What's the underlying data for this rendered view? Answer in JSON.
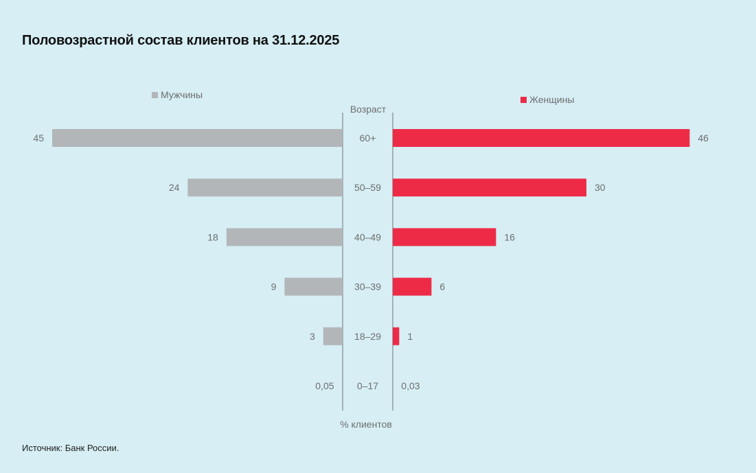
{
  "title": "Половозрастной состав клиентов на 31.12.2025",
  "source": "Источник: Банк России.",
  "chart_data": {
    "type": "bar",
    "orientation": "horizontal-butterfly",
    "title": "Половозрастной состав клиентов на 31.12.2025",
    "category_axis_label": "Возраст",
    "value_axis_label": "% клиентов",
    "categories": [
      "60+",
      "50–59",
      "40–49",
      "30–39",
      "18–29",
      "0–17"
    ],
    "series": [
      {
        "name": "Мужчины",
        "side": "left",
        "color": "#b3b6b9",
        "values": [
          45,
          24,
          18,
          9,
          3,
          0.05
        ],
        "labels": [
          "45",
          "24",
          "18",
          "9",
          "3",
          "0,05"
        ]
      },
      {
        "name": "Женщины",
        "side": "right",
        "color": "#ee2b47",
        "values": [
          46,
          30,
          16,
          6,
          1,
          0.03
        ],
        "labels": [
          "46",
          "30",
          "16",
          "6",
          "1",
          "0,03"
        ]
      }
    ],
    "xlim": [
      0,
      48
    ],
    "grid": false,
    "legend": "top"
  }
}
